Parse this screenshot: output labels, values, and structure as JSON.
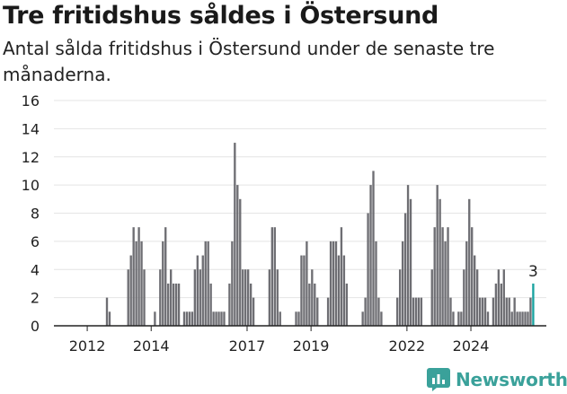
{
  "title": "Tre fritidshus såldes i Östersund",
  "subtitle": "Antal sålda fritidshus i Östersund under de senaste tre månaderna.",
  "brand": {
    "name": "Newsworthy",
    "icon": "newsworthy-logo-icon"
  },
  "colors": {
    "bar": "#6e6e73",
    "highlight": "#19a3a0",
    "grid": "#e4e4e4",
    "axis": "#222222"
  },
  "chart_data": {
    "type": "bar",
    "title": "Tre fritidshus såldes i Östersund",
    "subtitle": "Antal sålda fritidshus i Östersund under de senaste tre månaderna.",
    "xlabel": "",
    "ylabel": "",
    "ylim": [
      0,
      16
    ],
    "yticks": [
      0,
      2,
      4,
      6,
      8,
      10,
      12,
      14,
      16
    ],
    "x_tick_labels": [
      "2012",
      "2014",
      "2017",
      "2019",
      "2022",
      "2024"
    ],
    "start_month": "2011-01",
    "grid": true,
    "values": [
      0,
      0,
      0,
      0,
      0,
      0,
      0,
      0,
      0,
      0,
      0,
      0,
      0,
      0,
      0,
      0,
      0,
      0,
      0,
      2,
      1,
      0,
      0,
      0,
      0,
      0,
      0,
      4,
      5,
      7,
      6,
      7,
      6,
      4,
      0,
      0,
      0,
      1,
      0,
      4,
      6,
      7,
      3,
      4,
      3,
      3,
      3,
      0,
      1,
      1,
      1,
      1,
      4,
      5,
      4,
      5,
      6,
      6,
      3,
      1,
      1,
      1,
      1,
      1,
      0,
      3,
      6,
      13,
      10,
      9,
      4,
      4,
      4,
      3,
      2,
      0,
      0,
      0,
      0,
      0,
      4,
      7,
      7,
      4,
      1,
      0,
      0,
      0,
      0,
      0,
      1,
      1,
      5,
      5,
      6,
      3,
      4,
      3,
      2,
      0,
      0,
      0,
      2,
      6,
      6,
      6,
      5,
      7,
      5,
      3,
      0,
      0,
      0,
      0,
      0,
      1,
      2,
      8,
      10,
      11,
      6,
      2,
      1,
      0,
      0,
      0,
      0,
      0,
      2,
      4,
      6,
      8,
      10,
      9,
      2,
      2,
      2,
      2,
      0,
      0,
      0,
      4,
      7,
      10,
      9,
      7,
      6,
      7,
      2,
      1,
      0,
      1,
      1,
      4,
      6,
      9,
      7,
      5,
      4,
      2,
      2,
      2,
      1,
      0,
      2,
      3,
      4,
      3,
      4,
      2,
      2,
      1,
      2,
      1,
      1,
      1,
      1,
      1,
      2,
      3
    ],
    "highlight_last": true,
    "last_label": "3"
  }
}
